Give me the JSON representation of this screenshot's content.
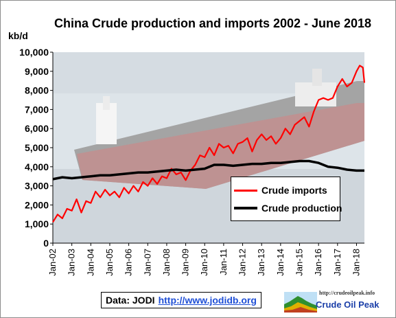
{
  "chart_data": {
    "type": "line",
    "title": "China Crude production and imports 2002 - June 2018",
    "ylabel": "kb/d",
    "ylim": [
      0,
      10000
    ],
    "y_ticks": [
      "0",
      "1,000",
      "2,000",
      "3,000",
      "4,000",
      "5,000",
      "6,000",
      "7,000",
      "8,000",
      "9,000",
      "10,000"
    ],
    "x_tick_labels": [
      "Jan-02",
      "Jan-03",
      "Jan-04",
      "Jan-05",
      "Jan-06",
      "Jan-07",
      "Jan-08",
      "Jan-09",
      "Jan-10",
      "Jan-11",
      "Jan-12",
      "Jan-13",
      "Jan-14",
      "Jan-15",
      "Jan-16",
      "Jan-17",
      "Jan-18"
    ],
    "x_range": [
      "2002-01",
      "2018-06"
    ],
    "legend_position": "lower-right",
    "series": [
      {
        "name": "Crude imports",
        "color": "#ff0000",
        "points": [
          [
            "2002-01",
            1100
          ],
          [
            "2002-04",
            1500
          ],
          [
            "2002-07",
            1300
          ],
          [
            "2002-10",
            1800
          ],
          [
            "2003-01",
            1700
          ],
          [
            "2003-04",
            2300
          ],
          [
            "2003-07",
            1600
          ],
          [
            "2003-10",
            2200
          ],
          [
            "2004-01",
            2100
          ],
          [
            "2004-04",
            2700
          ],
          [
            "2004-07",
            2400
          ],
          [
            "2004-10",
            2800
          ],
          [
            "2005-01",
            2500
          ],
          [
            "2005-04",
            2700
          ],
          [
            "2005-07",
            2400
          ],
          [
            "2005-10",
            2900
          ],
          [
            "2006-01",
            2600
          ],
          [
            "2006-04",
            3000
          ],
          [
            "2006-07",
            2700
          ],
          [
            "2006-10",
            3200
          ],
          [
            "2007-01",
            3000
          ],
          [
            "2007-04",
            3400
          ],
          [
            "2007-07",
            3100
          ],
          [
            "2007-10",
            3500
          ],
          [
            "2008-01",
            3400
          ],
          [
            "2008-04",
            3900
          ],
          [
            "2008-07",
            3600
          ],
          [
            "2008-10",
            3700
          ],
          [
            "2009-01",
            3300
          ],
          [
            "2009-04",
            3800
          ],
          [
            "2009-07",
            4100
          ],
          [
            "2009-10",
            4600
          ],
          [
            "2010-01",
            4500
          ],
          [
            "2010-04",
            5000
          ],
          [
            "2010-07",
            4600
          ],
          [
            "2010-10",
            5200
          ],
          [
            "2011-01",
            5000
          ],
          [
            "2011-04",
            5100
          ],
          [
            "2011-07",
            4700
          ],
          [
            "2011-10",
            5200
          ],
          [
            "2012-01",
            5300
          ],
          [
            "2012-04",
            5500
          ],
          [
            "2012-07",
            4800
          ],
          [
            "2012-10",
            5400
          ],
          [
            "2013-01",
            5700
          ],
          [
            "2013-04",
            5400
          ],
          [
            "2013-07",
            5600
          ],
          [
            "2013-10",
            5200
          ],
          [
            "2014-01",
            5500
          ],
          [
            "2014-04",
            6000
          ],
          [
            "2014-07",
            5700
          ],
          [
            "2014-10",
            6200
          ],
          [
            "2015-01",
            6400
          ],
          [
            "2015-04",
            6600
          ],
          [
            "2015-07",
            6100
          ],
          [
            "2015-10",
            6900
          ],
          [
            "2016-01",
            7500
          ],
          [
            "2016-04",
            7600
          ],
          [
            "2016-07",
            7500
          ],
          [
            "2016-10",
            7600
          ],
          [
            "2017-01",
            8200
          ],
          [
            "2017-04",
            8600
          ],
          [
            "2017-07",
            8200
          ],
          [
            "2017-10",
            8400
          ],
          [
            "2018-01",
            9000
          ],
          [
            "2018-03",
            9300
          ],
          [
            "2018-05",
            9200
          ],
          [
            "2018-06",
            8400
          ]
        ]
      },
      {
        "name": "Crude production",
        "color": "#000000",
        "points": [
          [
            "2002-01",
            3350
          ],
          [
            "2002-07",
            3450
          ],
          [
            "2003-01",
            3400
          ],
          [
            "2003-07",
            3450
          ],
          [
            "2004-01",
            3500
          ],
          [
            "2004-07",
            3550
          ],
          [
            "2005-01",
            3550
          ],
          [
            "2005-07",
            3600
          ],
          [
            "2006-01",
            3650
          ],
          [
            "2006-07",
            3700
          ],
          [
            "2007-01",
            3700
          ],
          [
            "2007-07",
            3750
          ],
          [
            "2008-01",
            3800
          ],
          [
            "2008-07",
            3850
          ],
          [
            "2009-01",
            3800
          ],
          [
            "2009-07",
            3850
          ],
          [
            "2010-01",
            3900
          ],
          [
            "2010-07",
            4100
          ],
          [
            "2011-01",
            4100
          ],
          [
            "2011-07",
            4050
          ],
          [
            "2012-01",
            4100
          ],
          [
            "2012-07",
            4150
          ],
          [
            "2013-01",
            4150
          ],
          [
            "2013-07",
            4200
          ],
          [
            "2014-01",
            4200
          ],
          [
            "2014-07",
            4250
          ],
          [
            "2015-01",
            4300
          ],
          [
            "2015-07",
            4300
          ],
          [
            "2016-01",
            4200
          ],
          [
            "2016-07",
            4000
          ],
          [
            "2017-01",
            3950
          ],
          [
            "2017-07",
            3850
          ],
          [
            "2018-01",
            3800
          ],
          [
            "2018-06",
            3800
          ]
        ]
      }
    ]
  },
  "source": {
    "label": "Data: JODI",
    "url_text": "http://www.jodidb.org"
  },
  "logo": {
    "url_text": "http://crudeoilpeak.info",
    "name": "Crude Oil Peak",
    "color": "#1a3ea8"
  }
}
